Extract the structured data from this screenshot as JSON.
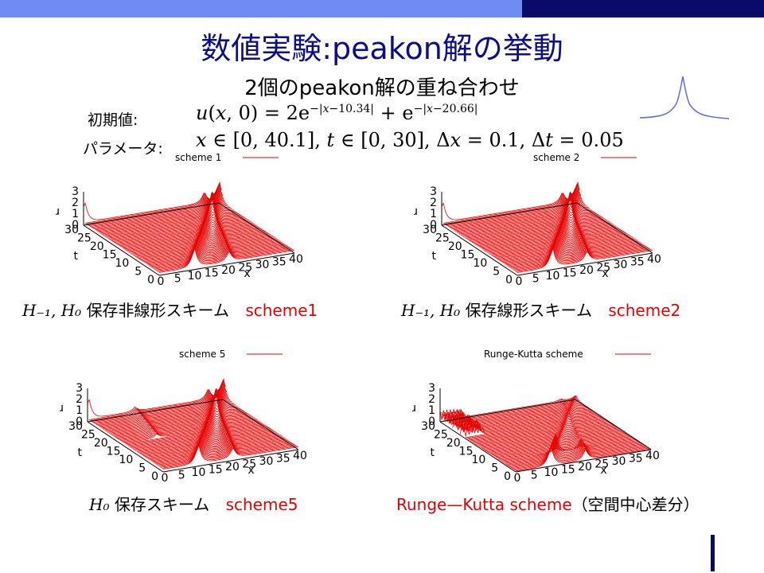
{
  "slide": {
    "title": "数値実験:peakon解の挙動",
    "subtitle": "2個のpeakon解の重ね合わせ",
    "initial_label": "初期値:",
    "initial_formula": "u(x,0) = 2e−|x−10.34| + e−|x−20.66|",
    "param_label": "パラメータ:",
    "param_formula": "x ∈ [0,40.1], t ∈ [0,30], Δx = 0.1, Δt = 0.05"
  },
  "panels": [
    {
      "legend": "scheme 1",
      "caption_math": "H₋₁, H₀",
      "caption_text": "保存非線形スキーム",
      "caption_red": "scheme1"
    },
    {
      "legend": "scheme 2",
      "caption_math": "H₋₁, H₀",
      "caption_text": "保存線形スキーム",
      "caption_red": "scheme2"
    },
    {
      "legend": "scheme 5",
      "caption_math": "H₀",
      "caption_text": "保存スキーム",
      "caption_red": "scheme5"
    },
    {
      "legend": "Runge-Kutta scheme",
      "caption_math": "",
      "caption_text": "",
      "caption_red": "Runge—Kutta scheme",
      "caption_suffix": "（空間中心差分）"
    }
  ],
  "axes": {
    "u_label": "u",
    "t_label": "t",
    "x_label": "x",
    "u_ticks": [
      "3",
      "2",
      "1",
      "0"
    ],
    "t_ticks": [
      "30",
      "25",
      "20",
      "15",
      "10",
      "5",
      "0"
    ],
    "x_ticks": [
      "0",
      "5",
      "10",
      "15",
      "20",
      "25",
      "30",
      "35",
      "40"
    ]
  },
  "colors": {
    "title": "#0d0d8c",
    "accent_red": "#e60000",
    "bar_light": "#6f8cf5",
    "bar_dark": "#0a0a6b",
    "peak_icon": "#5b6ee0"
  }
}
